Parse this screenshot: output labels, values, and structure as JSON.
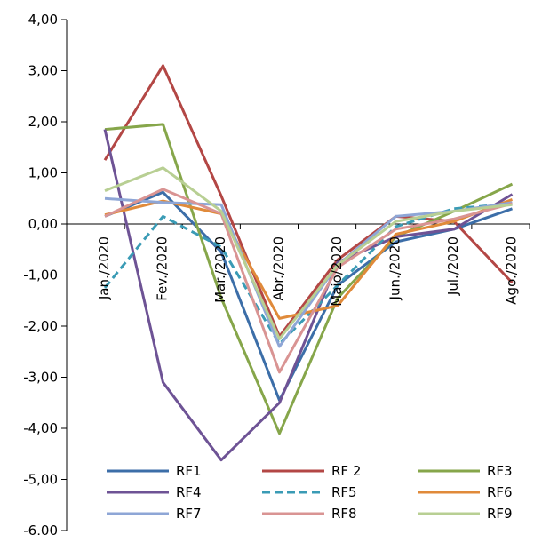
{
  "chart_data": {
    "type": "line",
    "title": "",
    "xlabel": "",
    "ylabel": "",
    "categories": [
      "Jan./2020",
      "Fev./2020",
      "Mar./2020",
      "Abr./2020",
      "Maio/2020",
      "Jun./2020",
      "Jul./2020",
      "Ago./2020"
    ],
    "ylim": [
      -6,
      4
    ],
    "yticks": [
      -6,
      -5,
      -4,
      -3,
      -2,
      -1,
      0,
      1,
      2,
      3,
      4
    ],
    "ytick_labels": [
      "-6,00",
      "-5,00",
      "-4,00",
      "-3,00",
      "-2,00",
      "-1,00",
      "0,00",
      "1,00",
      "2,00",
      "3,00",
      "4,00"
    ],
    "grid": false,
    "legend_position": "bottom-inside",
    "series": [
      {
        "name": "RF1",
        "color": "#3c6ea8",
        "dash": "solid",
        "values": [
          0.15,
          0.62,
          -0.55,
          -3.45,
          -1.2,
          -0.35,
          -0.1,
          0.3
        ]
      },
      {
        "name": "RF 2",
        "color": "#b34745",
        "dash": "solid",
        "values": [
          1.25,
          3.1,
          0.55,
          -2.2,
          -0.7,
          0.15,
          0.05,
          -1.15
        ]
      },
      {
        "name": "RF3",
        "color": "#86a64a",
        "dash": "solid",
        "values": [
          1.85,
          1.95,
          -1.45,
          -4.1,
          -1.45,
          -0.25,
          0.25,
          0.78
        ]
      },
      {
        "name": "RF4",
        "color": "#6e5395",
        "dash": "solid",
        "values": [
          1.85,
          -3.1,
          -4.62,
          -3.5,
          -0.75,
          -0.25,
          -0.1,
          0.58
        ]
      },
      {
        "name": "RF5",
        "color": "#3a9bb5",
        "dash": "dashed",
        "values": [
          -1.25,
          0.15,
          -0.45,
          -2.35,
          -1.2,
          -0.05,
          0.3,
          0.4
        ]
      },
      {
        "name": "RF6",
        "color": "#e08a3a",
        "dash": "solid",
        "values": [
          0.18,
          0.45,
          0.2,
          -1.85,
          -1.6,
          -0.2,
          0.05,
          0.48
        ]
      },
      {
        "name": "RF7",
        "color": "#8ea6d6",
        "dash": "solid",
        "values": [
          0.5,
          0.42,
          0.38,
          -2.4,
          -0.8,
          0.15,
          0.25,
          0.42
        ]
      },
      {
        "name": "RF8",
        "color": "#d99493",
        "dash": "solid",
        "values": [
          0.15,
          0.68,
          0.2,
          -2.9,
          -0.85,
          -0.1,
          0.1,
          0.4
        ]
      },
      {
        "name": "RF9",
        "color": "#b8cf93",
        "dash": "solid",
        "values": [
          0.65,
          1.1,
          0.25,
          -2.25,
          -0.8,
          0.05,
          0.25,
          0.38
        ]
      }
    ]
  }
}
